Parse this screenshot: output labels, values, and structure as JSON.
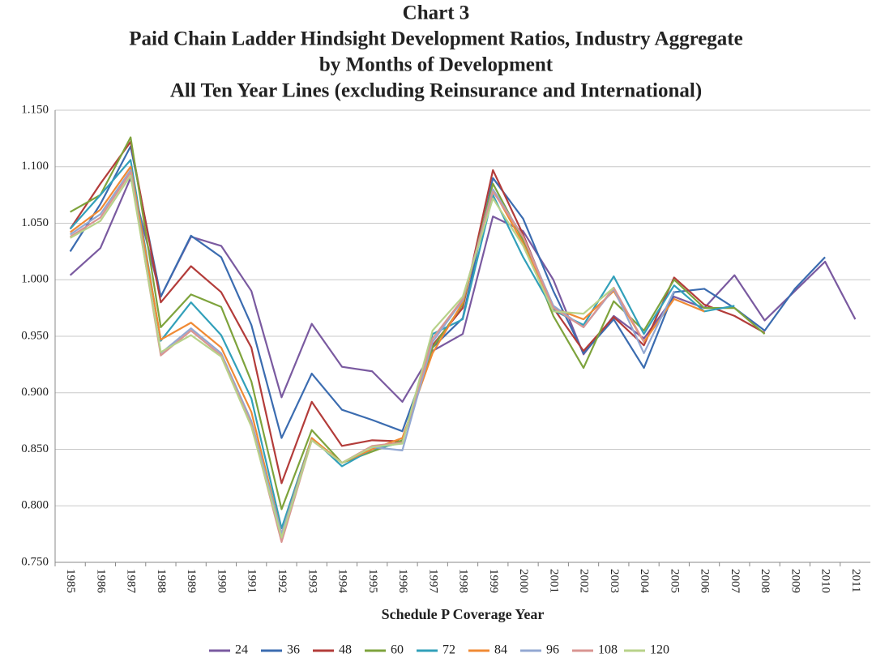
{
  "chart_data": {
    "type": "line",
    "title": [
      "Chart 3",
      "Paid Chain Ladder Hindsight Development Ratios, Industry Aggregate",
      "by Months of Development",
      "All Ten Year Lines (excluding Reinsurance and International)"
    ],
    "x_label": "Schedule P Coverage Year",
    "categories": [
      "1985",
      "1986",
      "1987",
      "1988",
      "1989",
      "1990",
      "1991",
      "1992",
      "1993",
      "1994",
      "1995",
      "1996",
      "1997",
      "1998",
      "1999",
      "2000",
      "2001",
      "2002",
      "2003",
      "2004",
      "2005",
      "2006",
      "2007",
      "2008",
      "2009",
      "2010",
      "2011"
    ],
    "ylim": [
      0.75,
      1.15
    ],
    "yticks": [
      {
        "value": 0.75,
        "label": "0.750"
      },
      {
        "value": 0.8,
        "label": "0.800"
      },
      {
        "value": 0.85,
        "label": "0.850"
      },
      {
        "value": 0.9,
        "label": "0.900"
      },
      {
        "value": 0.95,
        "label": "0.950"
      },
      {
        "value": 1.0,
        "label": "1.000"
      },
      {
        "value": 1.05,
        "label": "1.050"
      },
      {
        "value": 1.1,
        "label": "1.100"
      },
      {
        "value": 1.15,
        "label": "1.150"
      }
    ],
    "grid": true,
    "legend": "bottom",
    "series": [
      {
        "name": "24",
        "color": "#7a5aa0",
        "values": [
          1.004,
          1.028,
          1.09,
          0.985,
          1.038,
          1.03,
          0.99,
          0.896,
          0.961,
          0.923,
          0.919,
          0.892,
          0.937,
          0.952,
          1.056,
          1.043,
          1.0,
          0.934,
          0.968,
          0.948,
          0.985,
          0.975,
          1.004,
          0.964,
          0.99,
          1.016,
          0.965
        ]
      },
      {
        "name": "36",
        "color": "#3b6cb0",
        "values": [
          1.025,
          1.067,
          1.118,
          0.985,
          1.039,
          1.02,
          0.96,
          0.86,
          0.917,
          0.885,
          0.876,
          0.866,
          0.94,
          0.966,
          1.09,
          1.054,
          0.99,
          0.935,
          0.965,
          0.922,
          0.989,
          0.992,
          0.975,
          0.955,
          0.992,
          1.02,
          null
        ]
      },
      {
        "name": "48",
        "color": "#b33c3a",
        "values": [
          1.045,
          1.085,
          1.122,
          0.98,
          1.012,
          0.989,
          0.94,
          0.82,
          0.892,
          0.853,
          0.858,
          0.857,
          0.942,
          0.975,
          1.097,
          1.04,
          0.975,
          0.937,
          0.967,
          0.942,
          1.002,
          0.978,
          0.968,
          0.953,
          null,
          null,
          null
        ]
      },
      {
        "name": "60",
        "color": "#7ea33c",
        "values": [
          1.06,
          1.075,
          1.126,
          0.958,
          0.987,
          0.976,
          0.91,
          0.797,
          0.867,
          0.838,
          0.848,
          0.858,
          0.94,
          0.978,
          1.085,
          1.035,
          0.968,
          0.922,
          0.981,
          0.955,
          1.0,
          0.975,
          0.975,
          0.952,
          null,
          null,
          null
        ]
      },
      {
        "name": "72",
        "color": "#32a0ba",
        "values": [
          1.045,
          1.075,
          1.106,
          0.946,
          0.98,
          0.951,
          0.895,
          0.78,
          0.86,
          0.835,
          0.85,
          0.856,
          0.952,
          0.965,
          1.075,
          1.02,
          0.973,
          0.96,
          1.003,
          0.952,
          0.995,
          0.972,
          0.977,
          null,
          null,
          null,
          null
        ]
      },
      {
        "name": "84",
        "color": "#f08a34",
        "values": [
          1.042,
          1.062,
          1.1,
          0.947,
          0.962,
          0.94,
          0.883,
          0.775,
          0.86,
          0.838,
          0.85,
          0.86,
          0.935,
          0.98,
          1.08,
          1.032,
          0.975,
          0.965,
          0.99,
          0.945,
          0.983,
          0.972,
          null,
          null,
          null,
          null,
          null
        ]
      },
      {
        "name": "96",
        "color": "#93a8d2",
        "values": [
          1.04,
          1.058,
          1.097,
          0.935,
          0.957,
          0.935,
          0.875,
          0.775,
          0.858,
          0.838,
          0.852,
          0.849,
          0.945,
          0.982,
          1.08,
          1.038,
          0.977,
          0.958,
          0.992,
          0.935,
          0.99,
          null,
          null,
          null,
          null,
          null,
          null
        ]
      },
      {
        "name": "108",
        "color": "#d99592",
        "values": [
          1.038,
          1.055,
          1.095,
          0.933,
          0.955,
          0.933,
          0.872,
          0.768,
          0.858,
          0.838,
          0.853,
          0.856,
          0.948,
          0.983,
          1.078,
          1.038,
          0.975,
          0.958,
          0.993,
          0.945,
          null,
          null,
          null,
          null,
          null,
          null,
          null
        ]
      },
      {
        "name": "120",
        "color": "#b8d28a",
        "values": [
          1.037,
          1.052,
          1.092,
          0.936,
          0.951,
          0.932,
          0.87,
          0.772,
          0.858,
          0.838,
          0.852,
          0.855,
          0.955,
          0.985,
          1.072,
          1.03,
          0.972,
          0.97,
          0.993,
          null,
          null,
          null,
          null,
          null,
          null,
          null,
          null
        ]
      }
    ]
  }
}
